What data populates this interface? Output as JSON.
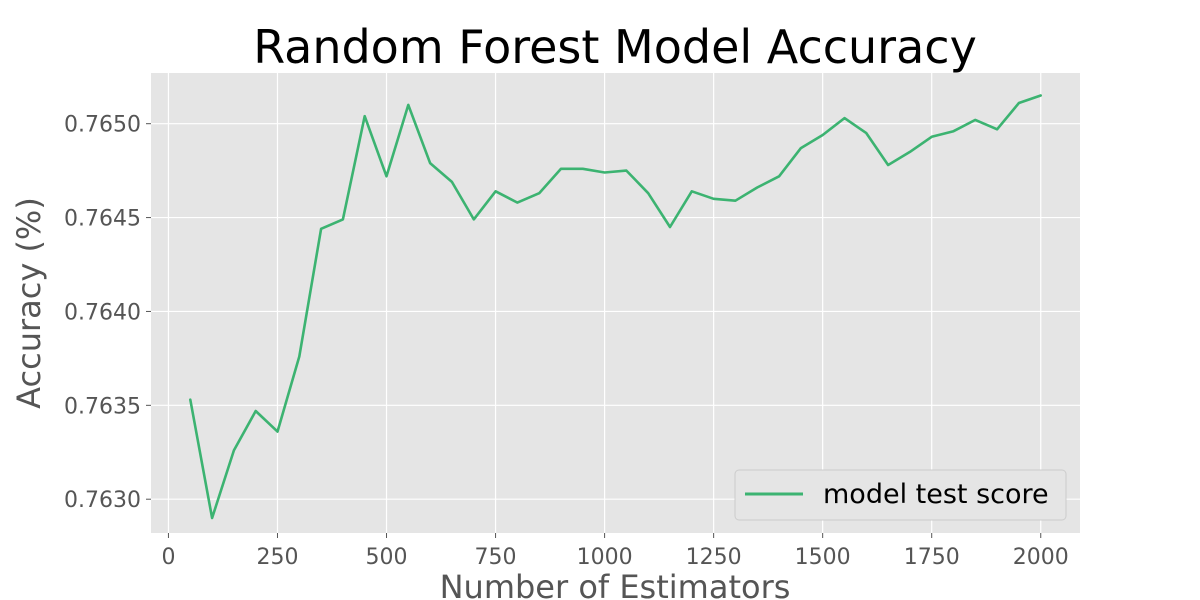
{
  "chart_data": {
    "type": "line",
    "title": "Random Forest Model Accuracy",
    "xlabel": "Number of Estimators",
    "ylabel": "Accuracy (%)",
    "xlim": [
      -40,
      2090
    ],
    "ylim": [
      0.76282,
      0.76527
    ],
    "xticks": [
      0,
      250,
      500,
      750,
      1000,
      1250,
      1500,
      1750,
      2000
    ],
    "xtick_labels": [
      "0",
      "250",
      "500",
      "750",
      "1000",
      "1250",
      "1500",
      "1750",
      "2000"
    ],
    "yticks": [
      0.763,
      0.7635,
      0.764,
      0.7645,
      0.765
    ],
    "ytick_labels": [
      "0.7630",
      "0.7635",
      "0.7640",
      "0.7645",
      "0.7650"
    ],
    "grid": true,
    "legend_position": "lower-right",
    "series": [
      {
        "name": "model test score",
        "color": "#3cb371",
        "x": [
          50,
          100,
          150,
          200,
          250,
          300,
          350,
          400,
          450,
          500,
          550,
          600,
          650,
          700,
          750,
          800,
          850,
          900,
          950,
          1000,
          1050,
          1100,
          1150,
          1200,
          1250,
          1300,
          1350,
          1400,
          1450,
          1500,
          1550,
          1600,
          1650,
          1700,
          1750,
          1800,
          1850,
          1900,
          1950,
          2000
        ],
        "y": [
          0.76353,
          0.7629,
          0.76326,
          0.76347,
          0.76336,
          0.76376,
          0.76444,
          0.76449,
          0.76504,
          0.76472,
          0.7651,
          0.76479,
          0.76469,
          0.76449,
          0.76464,
          0.76458,
          0.76463,
          0.76476,
          0.76476,
          0.76474,
          0.76475,
          0.76463,
          0.76445,
          0.76464,
          0.7646,
          0.76459,
          0.76466,
          0.76472,
          0.76487,
          0.76494,
          0.76503,
          0.76495,
          0.76478,
          0.76485,
          0.76493,
          0.76496,
          0.76502,
          0.76497,
          0.76511,
          0.76515
        ]
      }
    ]
  }
}
